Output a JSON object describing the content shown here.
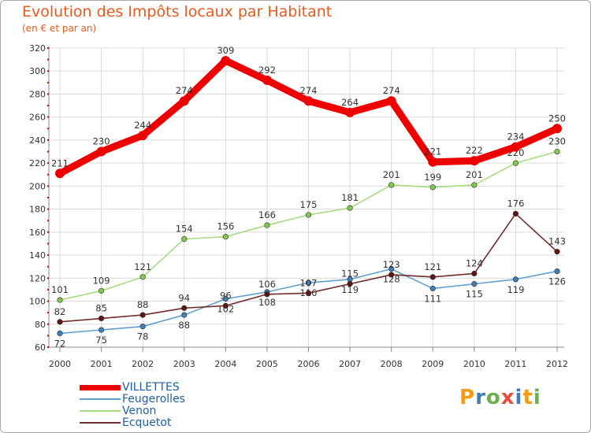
{
  "colors": {
    "title": "#e55a1e",
    "grid": "#d9d9d9",
    "axis_dots": "#cc0000",
    "legend_text": "#1f5fa0"
  },
  "chart_data": {
    "type": "line",
    "title": "Evolution des Impôts locaux par Habitant",
    "subtitle": "(en € et par an)",
    "xlabel": "",
    "ylabel": "",
    "x": [
      "2000",
      "2001",
      "2002",
      "2003",
      "2004",
      "2005",
      "2006",
      "2007",
      "2008",
      "2009",
      "2010",
      "2011",
      "2012"
    ],
    "yticks": [
      "60",
      "80",
      "100",
      "120",
      "140",
      "160",
      "180",
      "200",
      "220",
      "240",
      "260",
      "280",
      "300",
      "320"
    ],
    "ylim": [
      60,
      320
    ],
    "grid": true,
    "legend_position": "bottom-left",
    "series": [
      {
        "name": "Feugerolles",
        "color": "#5f9fd0",
        "marker": "#3d7fb5",
        "values": [
          72,
          75,
          78,
          88,
          102,
          108,
          116,
          119,
          128,
          111,
          115,
          119,
          126
        ],
        "labels": [
          "72",
          "75",
          "78",
          "88",
          "102",
          "108",
          "116",
          "119",
          "128",
          "111",
          "115",
          "119",
          "126"
        ]
      },
      {
        "name": "Venon",
        "color": "#a6db80",
        "marker": "#7fc84d",
        "values": [
          101,
          109,
          121,
          154,
          156,
          166,
          175,
          181,
          201,
          199,
          201,
          220,
          230
        ],
        "labels": [
          "101",
          "109",
          "121",
          "154",
          "156",
          "166",
          "175",
          "181",
          "201",
          "199",
          "201",
          "220",
          "230"
        ]
      },
      {
        "name": "Ecquetot",
        "color": "#6e2c2c",
        "marker": "#5e1515",
        "values": [
          82,
          85,
          88,
          94,
          96,
          106,
          107,
          115,
          123,
          121,
          124,
          176,
          143
        ],
        "labels": [
          "82",
          "85",
          "88",
          "94",
          "96",
          "106",
          "107",
          "115",
          "123",
          "121",
          "124",
          "176",
          "143"
        ]
      },
      {
        "name": "VILLETTES",
        "color": "#ee0000",
        "marker": "#ee0000",
        "values": [
          211,
          230,
          244,
          274,
          309,
          292,
          274,
          264,
          274,
          221,
          222,
          234,
          250
        ],
        "labels": [
          "211",
          "230",
          "244",
          "274",
          "309",
          "292",
          "274",
          "264",
          "274",
          "221",
          "222",
          "234",
          "250"
        ]
      }
    ],
    "legend": [
      "VILLETTES",
      "Feugerolles",
      "Venon",
      "Ecquetot"
    ]
  },
  "logo": {
    "letters": [
      "P",
      "r",
      "o",
      "x",
      "i",
      "t",
      "i"
    ],
    "colors": [
      "#f39c12",
      "#3d7fb5",
      "#6ab04c",
      "#e74c3c",
      "#3d7fb5",
      "#f39c12",
      "#6ab04c"
    ]
  }
}
